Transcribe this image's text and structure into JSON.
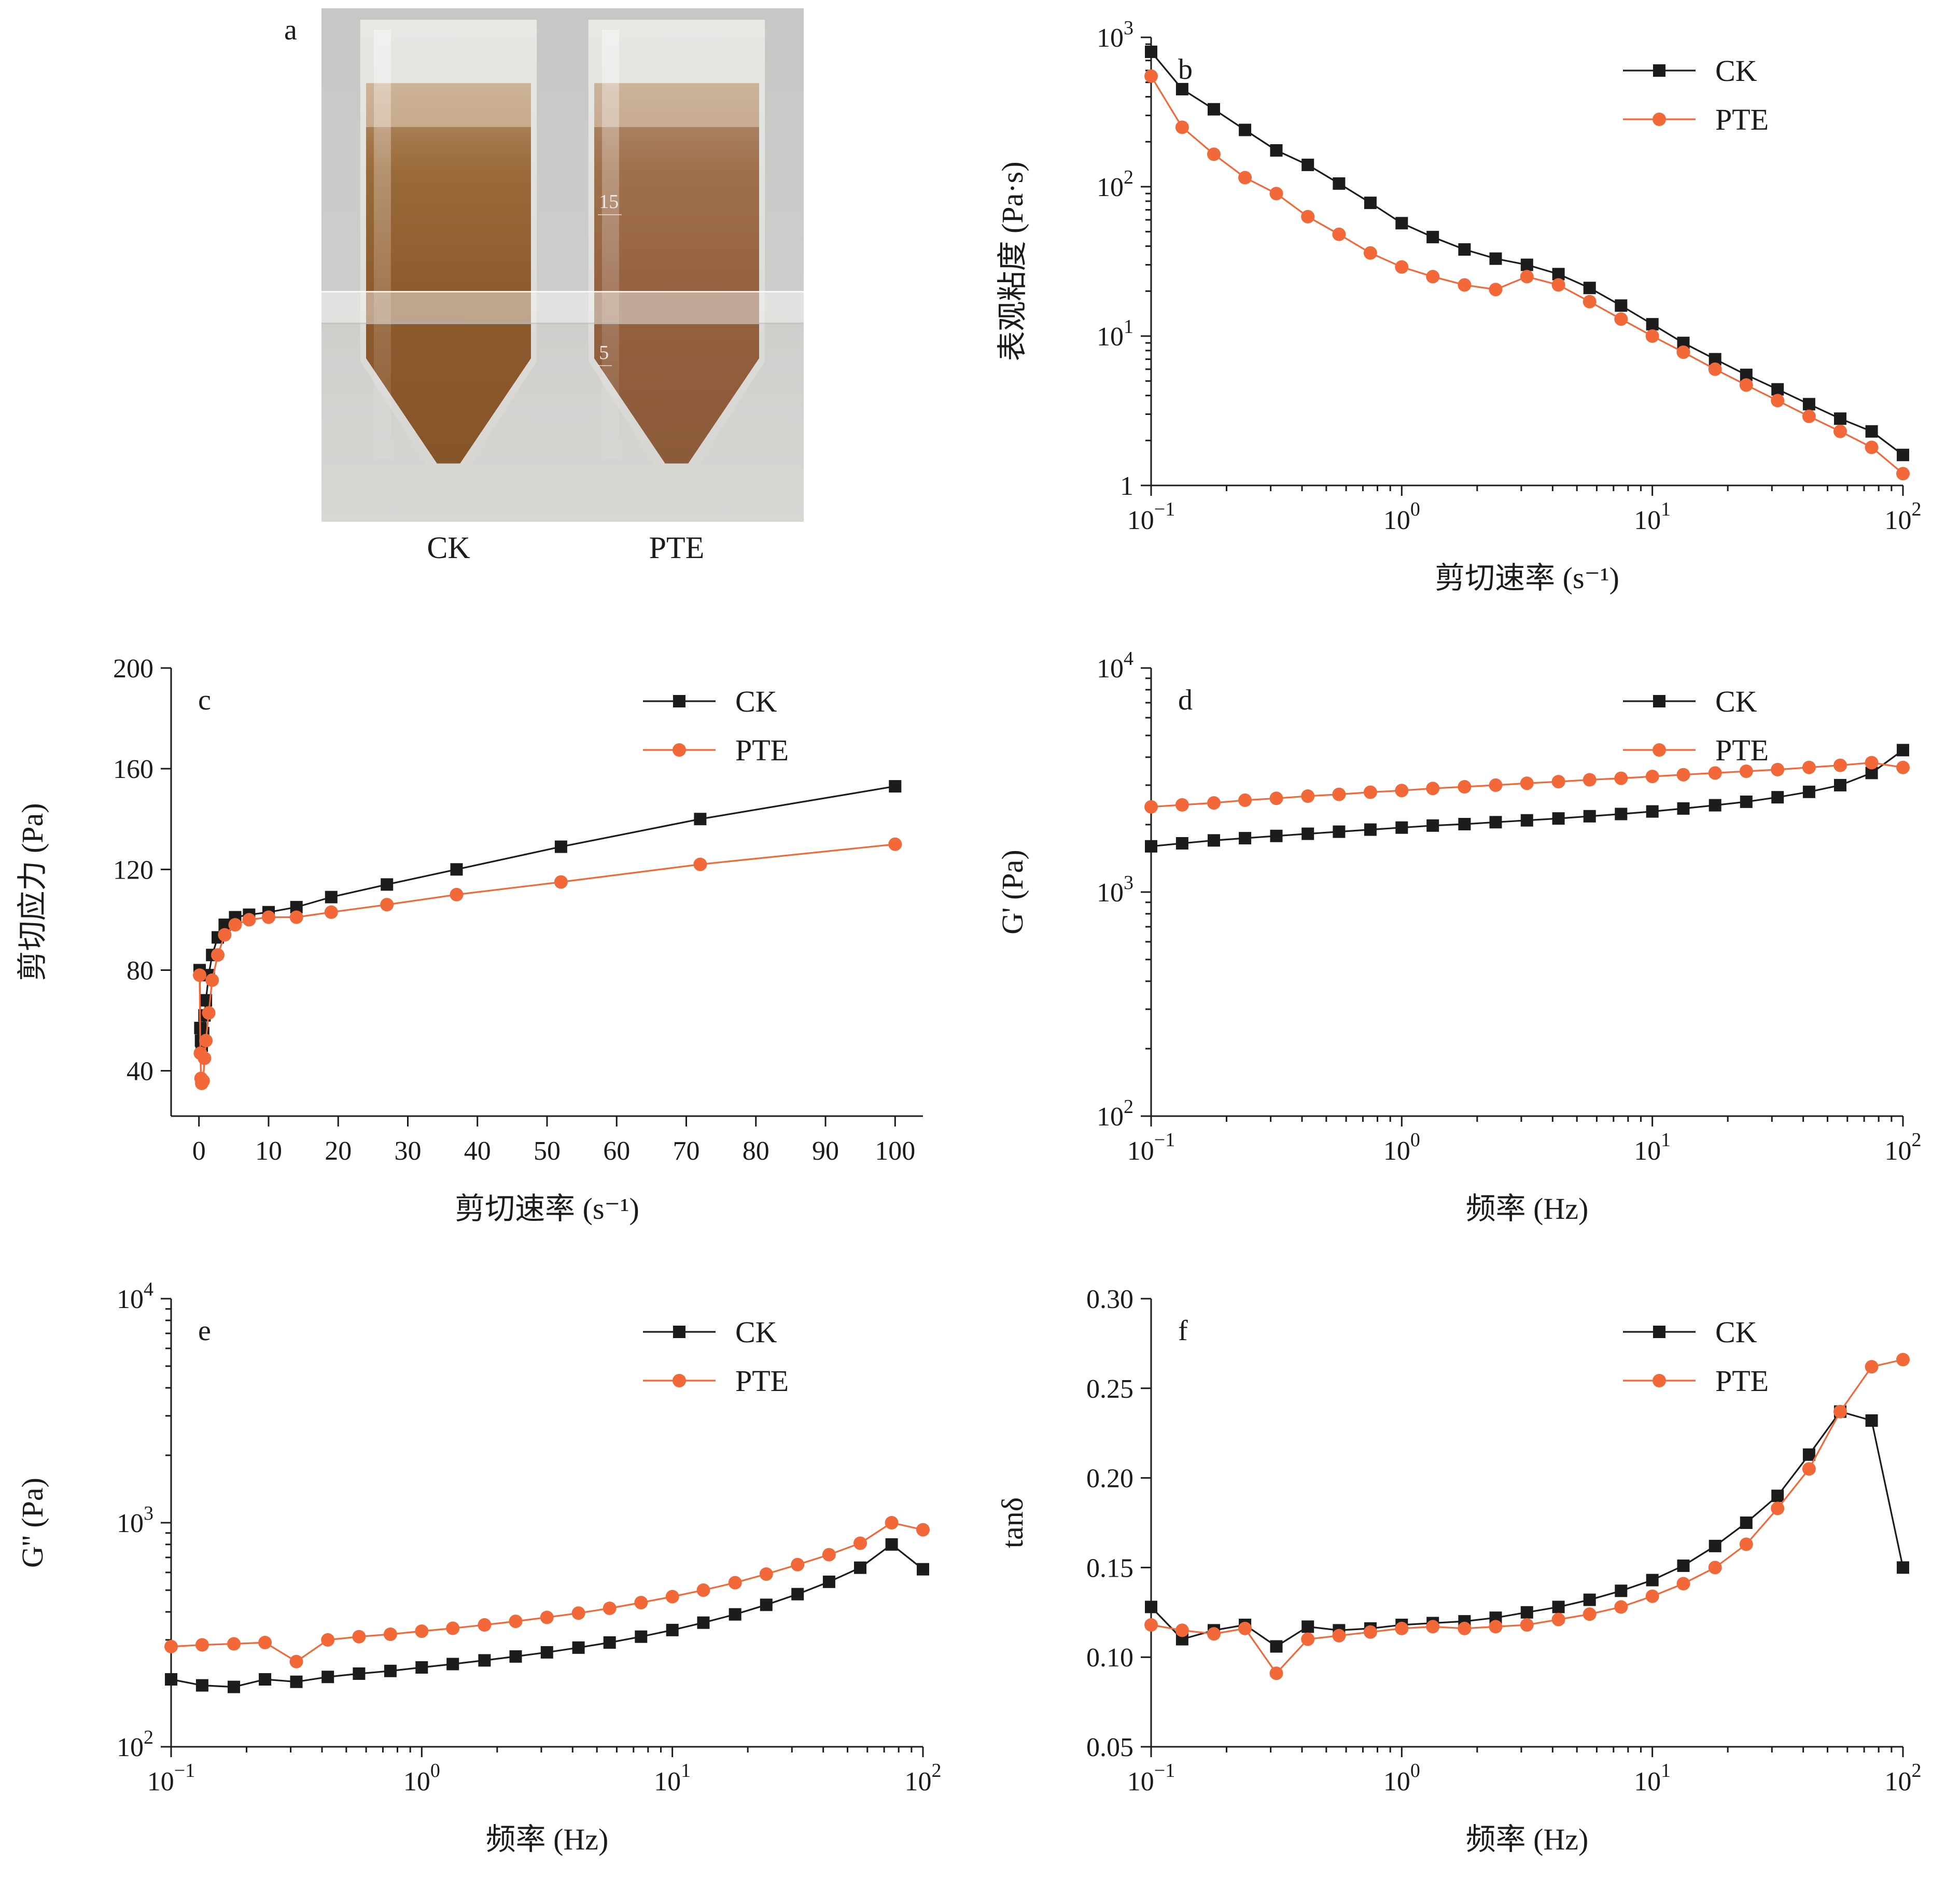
{
  "colors": {
    "ck": "#1c1c1c",
    "pte": "#f26838",
    "axis": "#1b1b1b"
  },
  "panel_a": {
    "label": "a",
    "tubes": [
      {
        "name": "CK"
      },
      {
        "name": "PTE",
        "graduations": [
          "15",
          "5"
        ]
      }
    ]
  },
  "chart_data": [
    {
      "panel": "b",
      "type": "line",
      "xscale": "log",
      "yscale": "log",
      "xlim": [
        0.1,
        100
      ],
      "ylim": [
        1,
        1000
      ],
      "ylog_one_plain": true,
      "xlabel": "剪切速率 (s⁻¹)",
      "ylabel": "表观粘度 (Pa·s)",
      "legend_position": "top-right",
      "grid": false,
      "x": [
        0.1,
        0.133,
        0.178,
        0.237,
        0.316,
        0.422,
        0.562,
        0.75,
        1.0,
        1.33,
        1.78,
        2.37,
        3.16,
        4.22,
        5.62,
        7.5,
        10,
        13.3,
        17.8,
        23.7,
        31.6,
        42.2,
        56.2,
        75,
        100
      ],
      "series": [
        {
          "name": "CK",
          "color": "#1c1c1c",
          "marker": "square",
          "values": [
            800,
            450,
            330,
            240,
            175,
            140,
            105,
            78,
            57,
            46,
            38,
            33,
            30,
            26,
            21,
            16,
            12,
            9,
            7,
            5.5,
            4.4,
            3.5,
            2.8,
            2.3,
            1.6
          ]
        },
        {
          "name": "PTE",
          "color": "#f26838",
          "marker": "circle",
          "values": [
            550,
            250,
            165,
            115,
            90,
            63,
            48,
            36,
            29,
            25,
            22,
            20.5,
            25,
            22,
            17,
            13,
            10,
            7.8,
            6.0,
            4.7,
            3.7,
            2.9,
            2.3,
            1.8,
            1.2
          ]
        }
      ]
    },
    {
      "panel": "c",
      "type": "line",
      "xscale": "linear",
      "yscale": "linear",
      "xlim": [
        -4,
        104
      ],
      "ylim": [
        22,
        200
      ],
      "xticks": [
        0,
        10,
        20,
        30,
        40,
        50,
        60,
        70,
        80,
        90,
        100
      ],
      "xtick_labels": [
        "0",
        "10",
        "20",
        "30",
        "40",
        "50",
        "60",
        "70",
        "80",
        "90",
        "100"
      ],
      "yticks": [
        40,
        80,
        120,
        160,
        200
      ],
      "ytick_labels": [
        "40",
        "80",
        "120",
        "160",
        "200"
      ],
      "xlabel": "剪切速率 (s⁻¹)",
      "ylabel": "剪切应力 (Pa)",
      "legend_position": "top-right",
      "grid": false,
      "x": [
        0.1,
        0.2,
        0.3,
        0.4,
        0.6,
        0.8,
        1,
        1.4,
        1.9,
        2.7,
        3.7,
        5.2,
        7.2,
        10,
        14,
        19,
        27,
        37,
        52,
        72,
        100
      ],
      "series": [
        {
          "name": "CK",
          "color": "#1c1c1c",
          "marker": "square",
          "values": [
            80,
            57,
            52,
            50,
            55,
            62,
            68,
            78,
            86,
            93,
            98,
            101,
            102,
            103,
            105,
            109,
            114,
            120,
            129,
            140,
            153
          ]
        },
        {
          "name": "PTE",
          "color": "#f26838",
          "marker": "circle",
          "values": [
            78,
            47,
            37,
            35,
            36,
            45,
            52,
            63,
            76,
            86,
            94,
            98,
            100,
            101,
            101,
            103,
            106,
            110,
            115,
            122,
            130
          ]
        }
      ]
    },
    {
      "panel": "d",
      "type": "line",
      "xscale": "log",
      "yscale": "log",
      "xlim": [
        0.1,
        100
      ],
      "ylim": [
        100,
        10000
      ],
      "xlabel": "频率 (Hz)",
      "ylabel": "G' (Pa)",
      "legend_position": "top-right",
      "grid": false,
      "x": [
        0.1,
        0.133,
        0.178,
        0.237,
        0.316,
        0.422,
        0.562,
        0.75,
        1.0,
        1.33,
        1.78,
        2.37,
        3.16,
        4.22,
        5.62,
        7.5,
        10,
        13.3,
        17.8,
        23.7,
        31.6,
        42.2,
        56.2,
        75,
        100
      ],
      "series": [
        {
          "name": "CK",
          "color": "#1c1c1c",
          "marker": "square",
          "values": [
            1600,
            1650,
            1700,
            1740,
            1780,
            1820,
            1860,
            1900,
            1940,
            1980,
            2010,
            2050,
            2090,
            2130,
            2180,
            2230,
            2290,
            2360,
            2440,
            2530,
            2650,
            2800,
            3000,
            3400,
            4300
          ]
        },
        {
          "name": "PTE",
          "color": "#f26838",
          "marker": "circle",
          "values": [
            2400,
            2450,
            2500,
            2570,
            2620,
            2680,
            2730,
            2790,
            2840,
            2900,
            2950,
            3000,
            3060,
            3110,
            3170,
            3220,
            3280,
            3340,
            3400,
            3460,
            3520,
            3600,
            3680,
            3780,
            3600
          ]
        }
      ]
    },
    {
      "panel": "e",
      "type": "line",
      "xscale": "log",
      "yscale": "log",
      "xlim": [
        0.1,
        100
      ],
      "ylim": [
        100,
        10000
      ],
      "xlabel": "频率 (Hz)",
      "ylabel": "G'' (Pa)",
      "legend_position": "top-right",
      "grid": false,
      "x": [
        0.1,
        0.133,
        0.178,
        0.237,
        0.316,
        0.422,
        0.562,
        0.75,
        1.0,
        1.33,
        1.78,
        2.37,
        3.16,
        4.22,
        5.62,
        7.5,
        10,
        13.3,
        17.8,
        23.7,
        31.6,
        42.2,
        56.2,
        75,
        100
      ],
      "series": [
        {
          "name": "CK",
          "color": "#1c1c1c",
          "marker": "square",
          "values": [
            200,
            188,
            185,
            200,
            195,
            205,
            212,
            218,
            226,
            234,
            243,
            253,
            264,
            277,
            292,
            310,
            332,
            358,
            390,
            430,
            480,
            545,
            630,
            800,
            620
          ]
        },
        {
          "name": "PTE",
          "color": "#f26838",
          "marker": "circle",
          "values": [
            280,
            285,
            288,
            292,
            240,
            300,
            310,
            318,
            328,
            338,
            350,
            363,
            378,
            395,
            415,
            440,
            468,
            500,
            540,
            590,
            650,
            720,
            810,
            1000,
            930
          ]
        }
      ]
    },
    {
      "panel": "f",
      "type": "line",
      "xscale": "log",
      "yscale": "linear",
      "xlim": [
        0.1,
        100
      ],
      "ylim": [
        0.05,
        0.3
      ],
      "yticks": [
        0.05,
        0.1,
        0.15,
        0.2,
        0.25,
        0.3
      ],
      "ytick_labels": [
        "0.05",
        "0.10",
        "0.15",
        "0.20",
        "0.25",
        "0.30"
      ],
      "xlabel": "频率 (Hz)",
      "ylabel": "tanδ",
      "legend_position": "top-right",
      "grid": false,
      "x": [
        0.1,
        0.133,
        0.178,
        0.237,
        0.316,
        0.422,
        0.562,
        0.75,
        1.0,
        1.33,
        1.78,
        2.37,
        3.16,
        4.22,
        5.62,
        7.5,
        10,
        13.3,
        17.8,
        23.7,
        31.6,
        42.2,
        56.2,
        75,
        100
      ],
      "series": [
        {
          "name": "CK",
          "color": "#1c1c1c",
          "marker": "square",
          "values": [
            0.128,
            0.11,
            0.115,
            0.118,
            0.106,
            0.117,
            0.115,
            0.116,
            0.118,
            0.119,
            0.12,
            0.122,
            0.125,
            0.128,
            0.132,
            0.137,
            0.143,
            0.151,
            0.162,
            0.175,
            0.19,
            0.213,
            0.237,
            0.232,
            0.15
          ]
        },
        {
          "name": "PTE",
          "color": "#f26838",
          "marker": "circle",
          "values": [
            0.118,
            0.115,
            0.113,
            0.116,
            0.091,
            0.11,
            0.112,
            0.114,
            0.116,
            0.117,
            0.116,
            0.117,
            0.118,
            0.121,
            0.124,
            0.128,
            0.134,
            0.141,
            0.15,
            0.163,
            0.183,
            0.205,
            0.237,
            0.262,
            0.266
          ]
        }
      ]
    }
  ]
}
